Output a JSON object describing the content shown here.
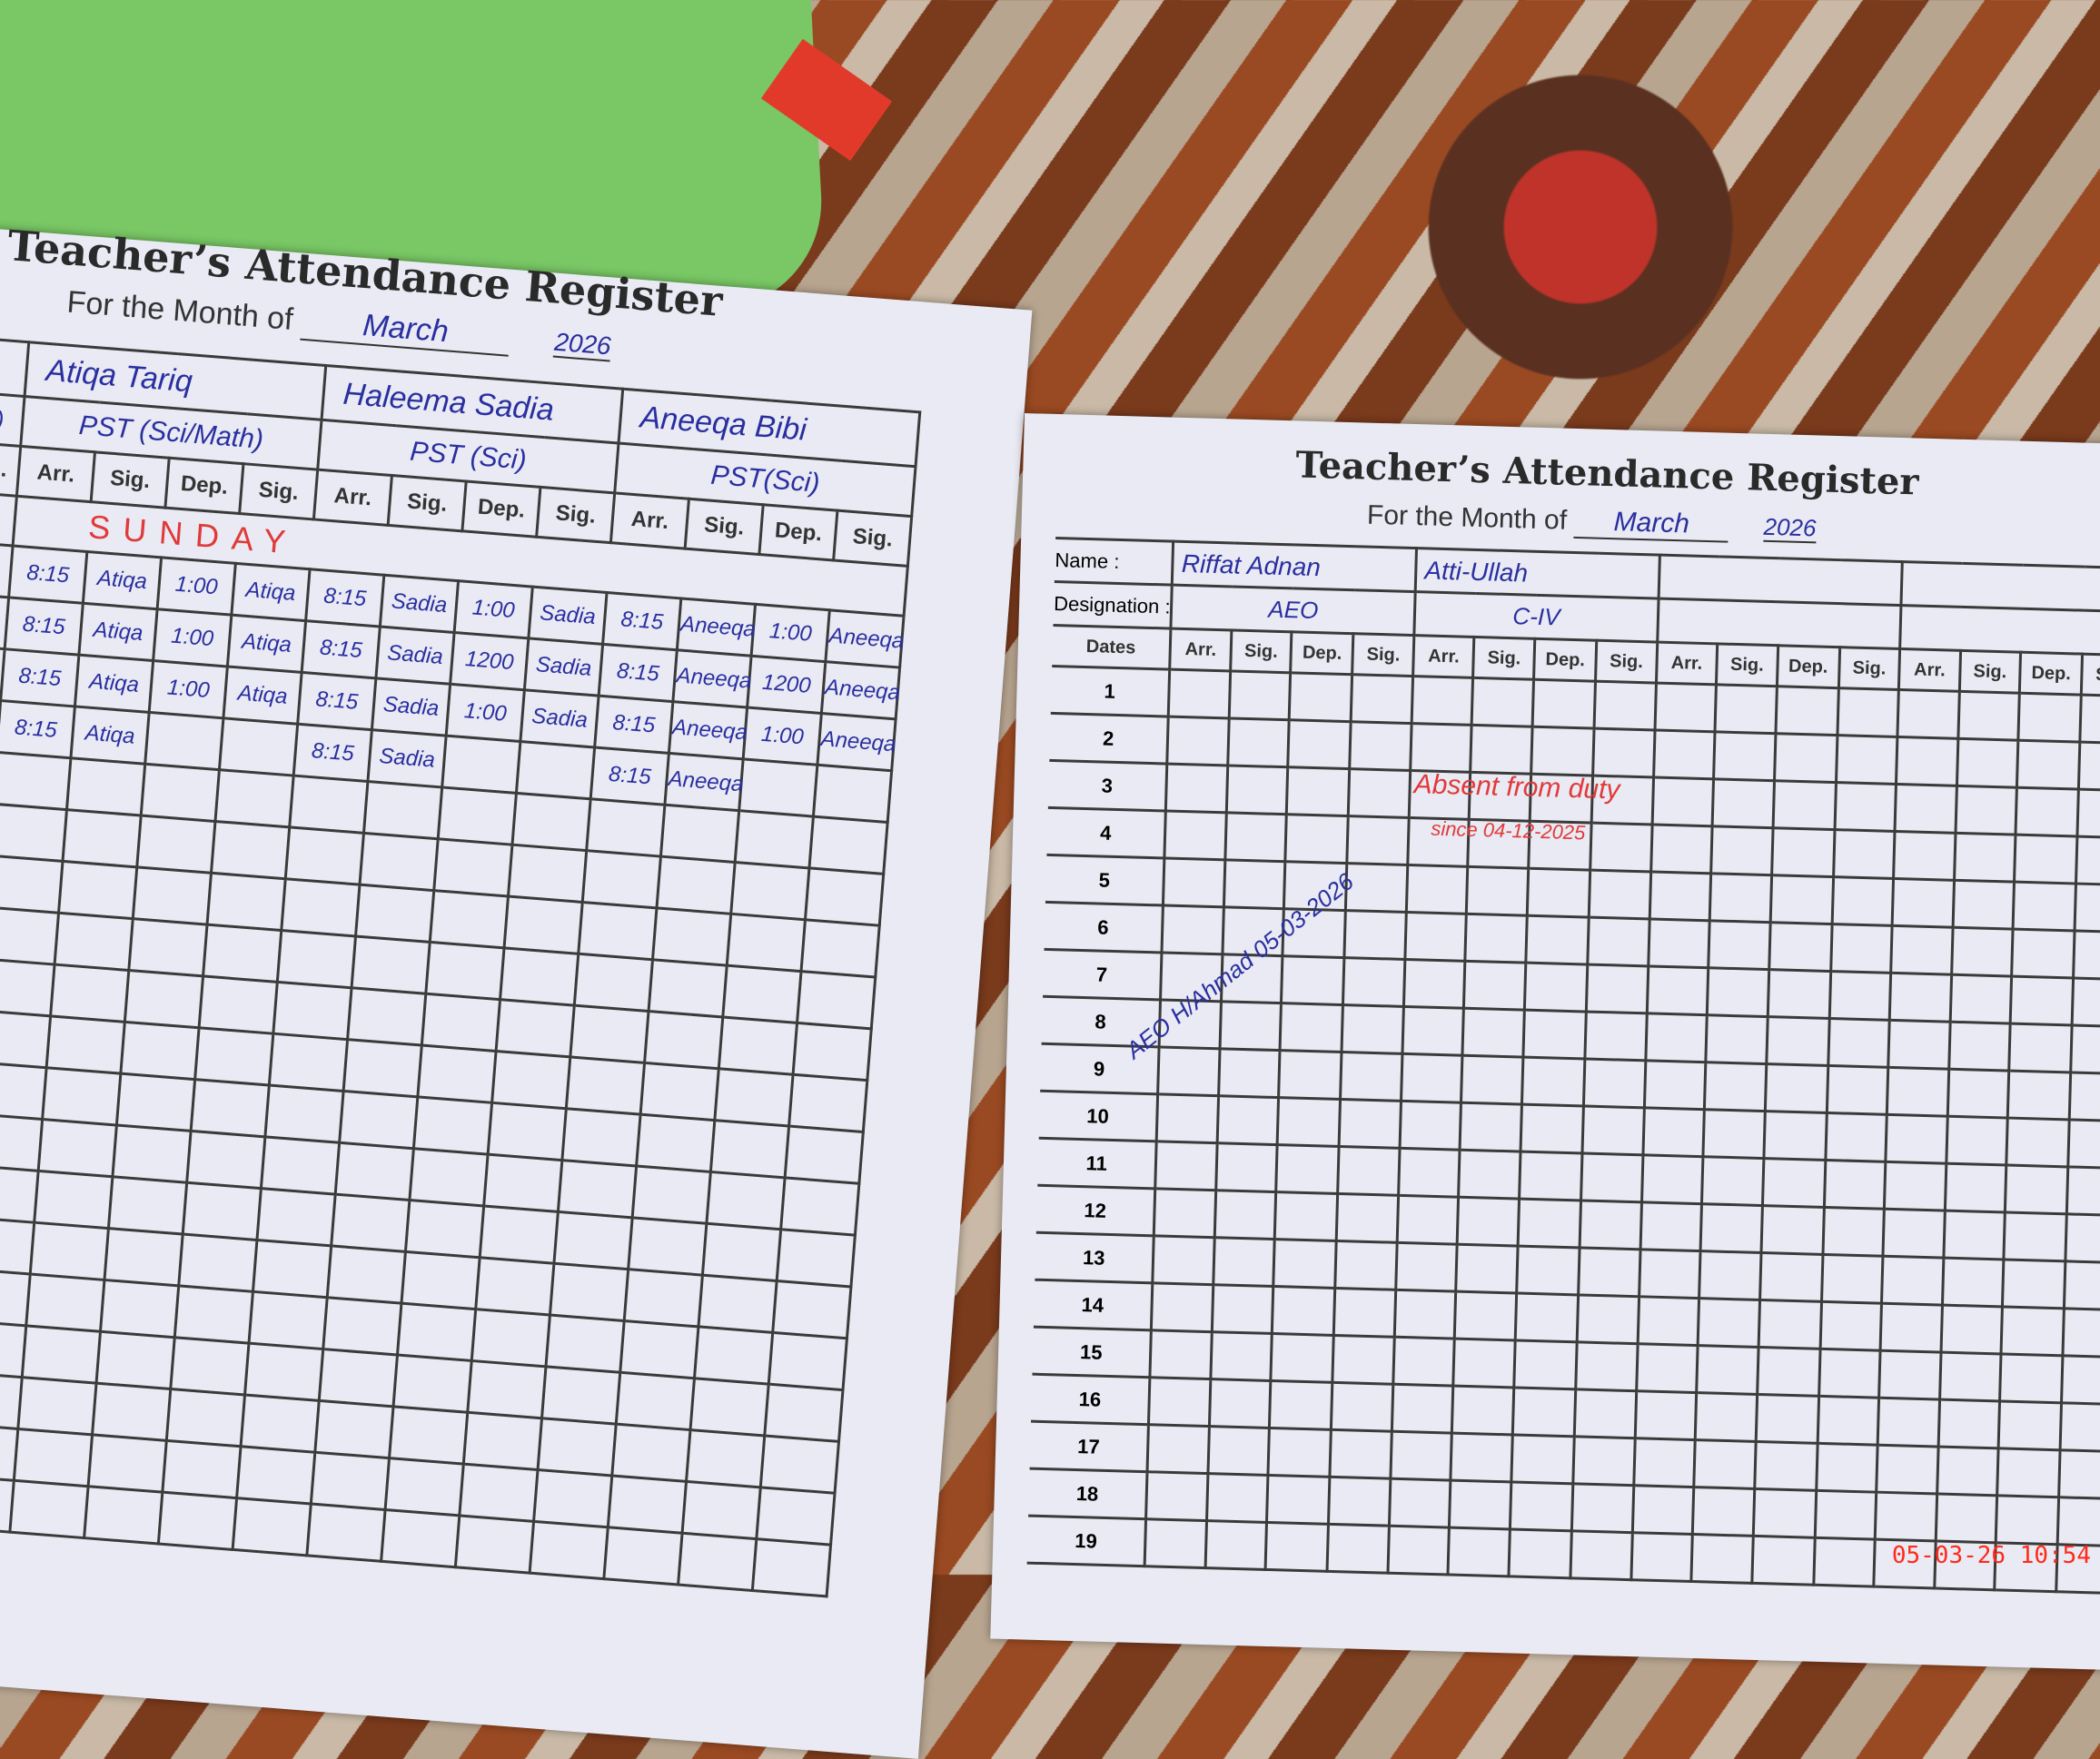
{
  "left_page": {
    "title": "Teacher’s Attendance Register",
    "month_label": "For the Month of",
    "month": "March",
    "year": "2026",
    "stub_labels": [
      "ts)",
      "Sig."
    ],
    "column_labels": [
      "Arr.",
      "Sig.",
      "Dep.",
      "Sig."
    ],
    "teachers": [
      {
        "name": "Atiqa Tariq",
        "designation": "PST (Sci/Math)"
      },
      {
        "name": "Haleema Sadia",
        "designation": "PST (Sci)"
      },
      {
        "name": "Aneeqa Bibi",
        "designation": "PST(Sci)"
      }
    ],
    "holiday_note": "SUNDAY",
    "rows": [
      [
        "8:15",
        "Atiqa",
        "1:00",
        "Atiqa",
        "8:15",
        "Sadia",
        "1:00",
        "Sadia",
        "8:15",
        "Aneeqa",
        "1:00",
        "Aneeqa"
      ],
      [
        "8:15",
        "Atiqa",
        "1:00",
        "Atiqa",
        "8:15",
        "Sadia",
        "1200",
        "Sadia",
        "8:15",
        "Aneeqa",
        "1200",
        "Aneeqa"
      ],
      [
        "8:15",
        "Atiqa",
        "1:00",
        "Atiqa",
        "8:15",
        "Sadia",
        "1:00",
        "Sadia",
        "8:15",
        "Aneeqa",
        "1:00",
        "Aneeqa"
      ],
      [
        "8:15",
        "Atiqa",
        "",
        "",
        "8:15",
        "Sadia",
        "",
        "",
        "8:15",
        "Aneeqa",
        "",
        ""
      ]
    ]
  },
  "right_page": {
    "title": "Teacher’s Attendance Register",
    "month_label": "For the Month of",
    "month": "March",
    "year": "2026",
    "name_label": "Name :",
    "designation_label": "Designation :",
    "dates_label": "Dates",
    "column_labels": [
      "Arr.",
      "Sig.",
      "Dep.",
      "Sig."
    ],
    "teachers": [
      {
        "name": "Riffat Adnan",
        "designation": "AEO"
      },
      {
        "name": "Atti-Ullah",
        "designation": "C-IV"
      },
      {
        "name": "",
        "designation": ""
      },
      {
        "name": "",
        "designation": ""
      }
    ],
    "dates": [
      "1",
      "2",
      "3",
      "4",
      "5",
      "6",
      "7",
      "8",
      "9",
      "10",
      "11",
      "12",
      "13",
      "14",
      "15",
      "16",
      "17",
      "18",
      "19"
    ],
    "absent_note": "Absent from duty",
    "absent_since": "since 04-12-2025",
    "signature": "AEO H/Ahmad 05-03-2026"
  },
  "photo_timestamp": "05-03-26 10:54",
  "colors": {
    "ink_blue": "#2a2fa0",
    "ink_red": "#e03a3a",
    "paper": "#e9eaf3",
    "timestamp": "#ff2a1a"
  }
}
